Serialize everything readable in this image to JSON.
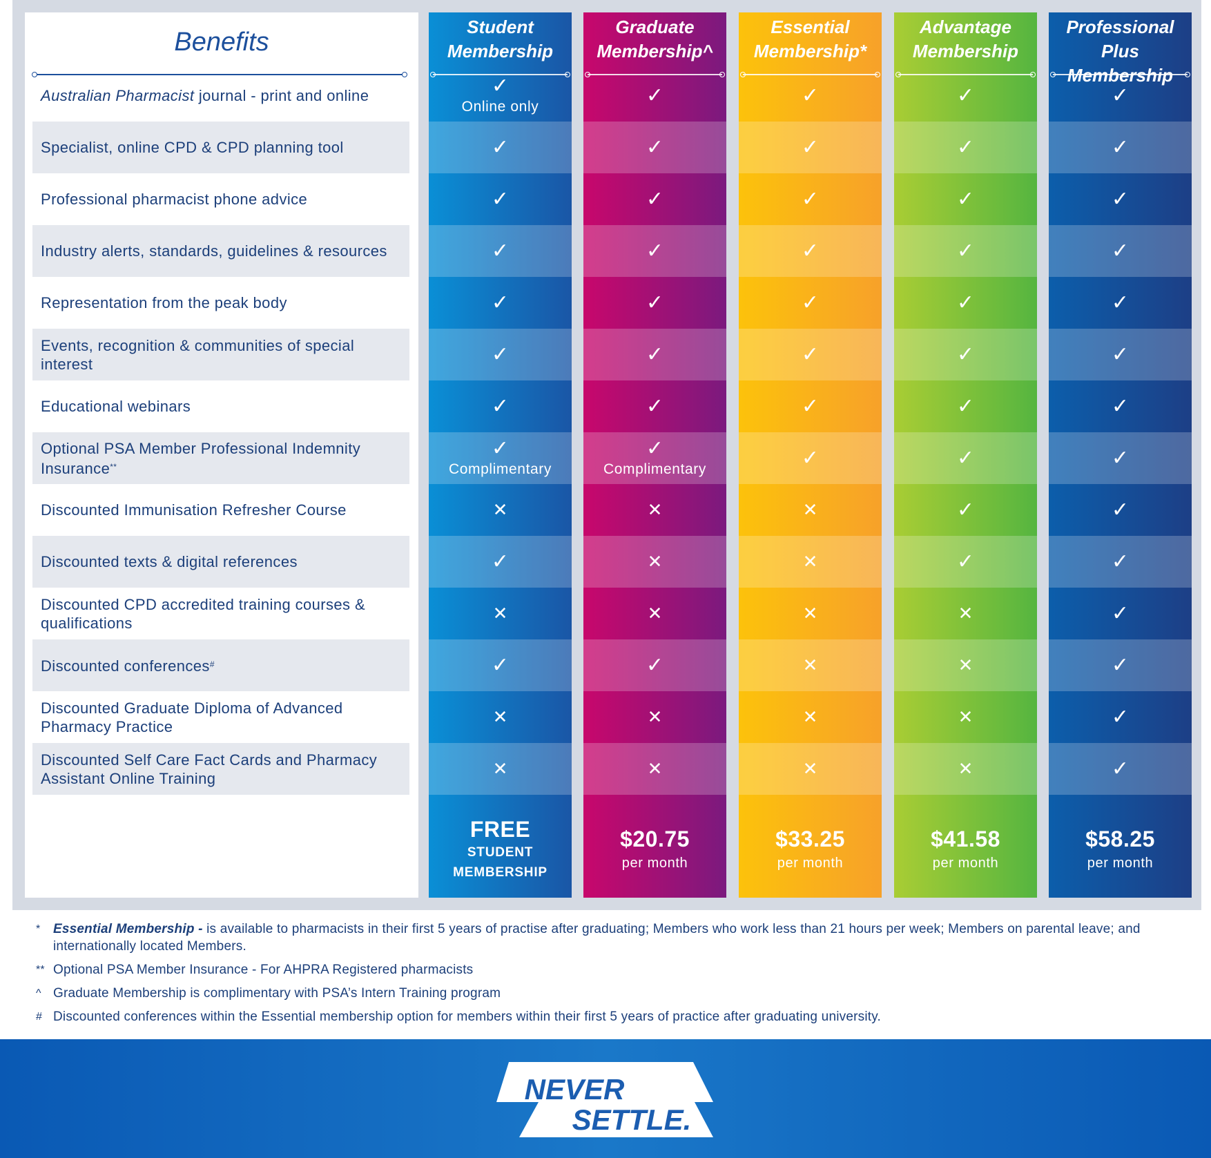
{
  "benefits_title": "Benefits",
  "benefits": [
    {
      "italic": "Australian Pharmacist",
      "text": " journal - print and online"
    },
    {
      "italic": "",
      "text": "Specialist, online CPD & CPD planning tool"
    },
    {
      "italic": "",
      "text": "Professional pharmacist phone advice"
    },
    {
      "italic": "",
      "text": "Industry alerts, standards, guidelines & resources"
    },
    {
      "italic": "",
      "text": "Representation from the peak body"
    },
    {
      "italic": "",
      "text": "Events, recognition & communities of special interest"
    },
    {
      "italic": "",
      "text": "Educational webinars"
    },
    {
      "italic": "",
      "text": "Optional PSA Member Professional Indemnity Insurance",
      "sup": "**"
    },
    {
      "italic": "",
      "text": "Discounted Immunisation Refresher Course"
    },
    {
      "italic": "",
      "text": "Discounted texts & digital references"
    },
    {
      "italic": "",
      "text": "Discounted CPD accredited training courses & qualifications"
    },
    {
      "italic": "",
      "text": "Discounted conferences",
      "sup": "#"
    },
    {
      "italic": "",
      "text": "Discounted Graduate Diploma of Advanced Pharmacy Practice"
    },
    {
      "italic": "",
      "text": "Discounted Self Care Fact Cards and Pharmacy Assistant Online Training"
    }
  ],
  "plans": [
    {
      "line1": "Student",
      "line2": "Membership",
      "colors": [
        "#0a8fd6",
        "#1a56a6"
      ],
      "marks": [
        "check",
        "check",
        "check",
        "check",
        "check",
        "check",
        "check",
        "check",
        "cross",
        "check",
        "cross",
        "check",
        "cross",
        "cross"
      ],
      "notes": {
        "0": "Online only",
        "7": "Complimentary"
      },
      "price": "FREE",
      "price_sub": "STUDENT MEMBERSHIP",
      "price_style": "free"
    },
    {
      "line1": "Graduate",
      "line2": "Membership^",
      "colors": [
        "#c8076c",
        "#7b1a7e"
      ],
      "marks": [
        "check",
        "check",
        "check",
        "check",
        "check",
        "check",
        "check",
        "check",
        "cross",
        "cross",
        "cross",
        "check",
        "cross",
        "cross"
      ],
      "notes": {
        "7": "Complimentary"
      },
      "price": "$20.75",
      "price_sub": "per month",
      "price_style": "price"
    },
    {
      "line1": "Essential",
      "line2": "Membership*",
      "colors": [
        "#fcc20b",
        "#f7a12a"
      ],
      "marks": [
        "check",
        "check",
        "check",
        "check",
        "check",
        "check",
        "check",
        "check",
        "cross",
        "cross",
        "cross",
        "cross",
        "cross",
        "cross"
      ],
      "notes": {},
      "price": "$33.25",
      "price_sub": "per month",
      "price_style": "price"
    },
    {
      "line1": "Advantage",
      "line2": "Membership",
      "colors": [
        "#a9cd34",
        "#55b540"
      ],
      "marks": [
        "check",
        "check",
        "check",
        "check",
        "check",
        "check",
        "check",
        "check",
        "check",
        "check",
        "cross",
        "cross",
        "cross",
        "cross"
      ],
      "notes": {},
      "price": "$41.58",
      "price_sub": "per month",
      "price_style": "price"
    },
    {
      "line1": "Professional Plus",
      "line2": "Membership",
      "colors": [
        "#0c5eab",
        "#1d3f86"
      ],
      "marks": [
        "check",
        "check",
        "check",
        "check",
        "check",
        "check",
        "check",
        "check",
        "check",
        "check",
        "check",
        "check",
        "check",
        "check"
      ],
      "notes": {},
      "price": "$58.25",
      "price_sub": "per month",
      "price_style": "price"
    }
  ],
  "footnotes": [
    {
      "symbol": "*",
      "emph": "Essential Membership -",
      "text": " is available to pharmacists in their first 5 years of practise after graduating; Members who work less than 21 hours per week; Members on parental leave; and internationally located Members."
    },
    {
      "symbol": "**",
      "emph": "",
      "text": "Optional PSA Member Insurance - For AHPRA Registered pharmacists"
    },
    {
      "symbol": "^",
      "emph": "",
      "text": "Graduate Membership is complimentary with PSA’s Intern Training program"
    },
    {
      "symbol": "#",
      "emph": "",
      "text": "Discounted conferences within the Essential membership option for members within their first 5 years of practice after graduating university."
    }
  ],
  "logo": {
    "line1": "NEVER",
    "line2": "SETTLE."
  }
}
